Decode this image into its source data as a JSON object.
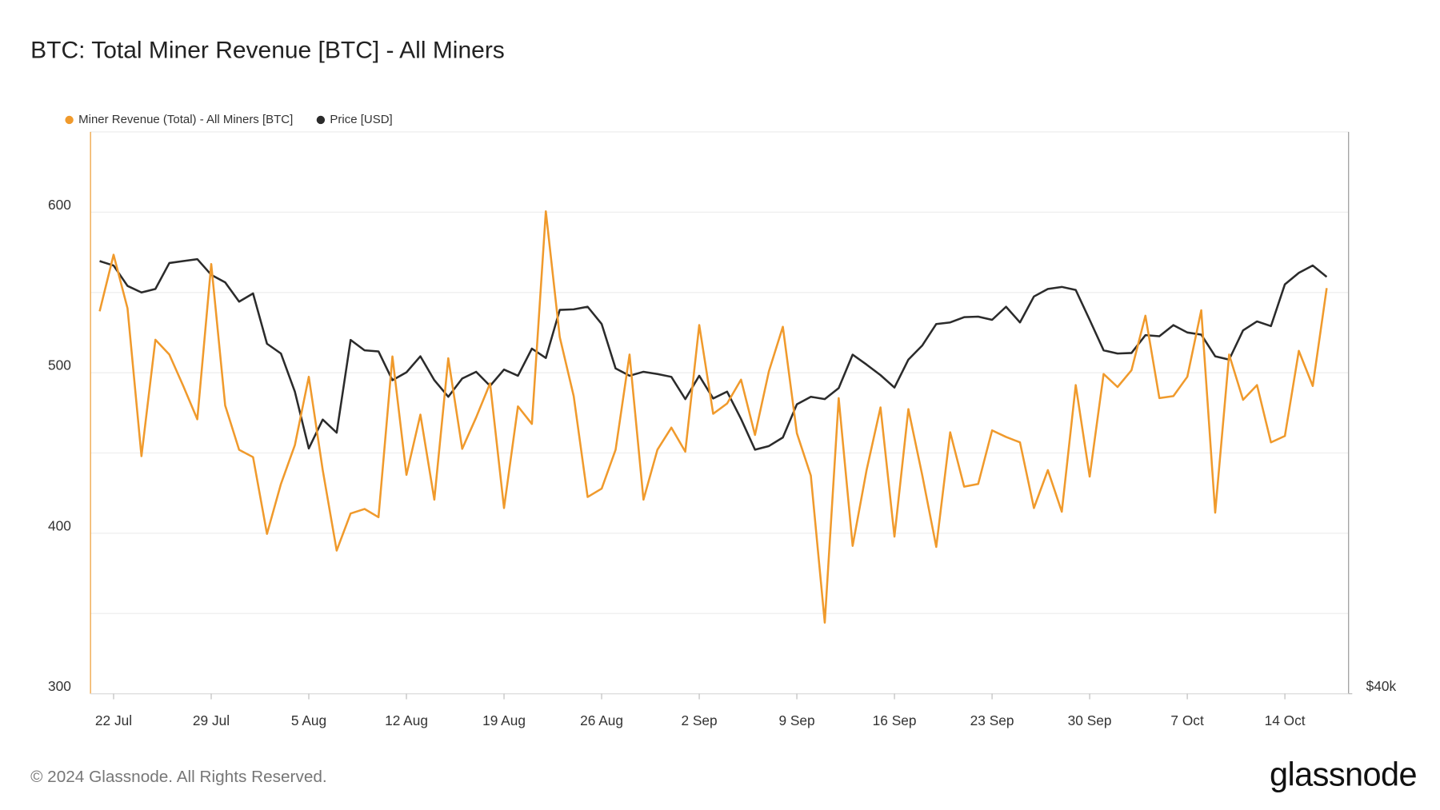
{
  "chart_data": {
    "type": "line",
    "title": "BTC: Total Miner Revenue [BTC] - All Miners",
    "categories": [
      null,
      "22 Jul",
      null,
      null,
      null,
      null,
      null,
      null,
      "29 Jul",
      null,
      null,
      null,
      null,
      null,
      null,
      "5 Aug",
      null,
      null,
      null,
      null,
      null,
      null,
      "12 Aug",
      null,
      null,
      null,
      null,
      null,
      null,
      "19 Aug",
      null,
      null,
      null,
      null,
      null,
      null,
      "26 Aug",
      null,
      null,
      null,
      null,
      null,
      null,
      "2 Sep",
      null,
      null,
      null,
      null,
      null,
      null,
      "9 Sep",
      null,
      null,
      null,
      null,
      null,
      null,
      "16 Sep",
      null,
      null,
      null,
      null,
      null,
      null,
      "23 Sep",
      null,
      null,
      null,
      null,
      null,
      null,
      "30 Sep",
      null,
      null,
      null,
      null,
      null,
      null,
      "7 Oct",
      null,
      null,
      null,
      null,
      null,
      null,
      "14 Oct",
      null,
      null,
      null
    ],
    "series": [
      {
        "name": "Miner Revenue (Total) - All Miners [BTC]",
        "color": "#f09a2c",
        "values": [
          538.3,
          573.5,
          540.1,
          448,
          520.5,
          511.3,
          491.7,
          471,
          567.7,
          479.6,
          452,
          447.4,
          399.6,
          430.7,
          454.9,
          497.5,
          439.3,
          389.2,
          412.3,
          415.1,
          410,
          510.1,
          436.4,
          473.9,
          420.9,
          509,
          452.6,
          472.1,
          493.4,
          415.7,
          479,
          468.1,
          600.5,
          522.2,
          485.4,
          422.6,
          427.8,
          452,
          511.3,
          420.9,
          452,
          465.8,
          450.8,
          529.7,
          474.4,
          480.8,
          495.7,
          461.2,
          500.9,
          528.6,
          462.3,
          435.9,
          344.3,
          484.2,
          392.1,
          439.3,
          478.4,
          397.9,
          477.3,
          435.9,
          391.5,
          462.9,
          429,
          430.7,
          464.1,
          460,
          456.6,
          415.7,
          439.3,
          413.4,
          492.3,
          435.3,
          499.2,
          491.1,
          501.5,
          535.5,
          484.2,
          485.4,
          497.5,
          538.9,
          412.8,
          511.3,
          483.1,
          492.3,
          456.6,
          460.6,
          513.6,
          491.7,
          552.7
        ]
      },
      {
        "name": "Price [USD]",
        "color": "#2b2b2b",
        "axis": "y2",
        "values": [
          67560,
          67200,
          65560,
          65040,
          65320,
          67400,
          67560,
          67720,
          66440,
          65840,
          64320,
          64960,
          61120,
          60400,
          57680,
          53840,
          55760,
          54880,
          61400,
          60640,
          60560,
          58480,
          59040,
          60200,
          58480,
          57320,
          58600,
          59080,
          58080,
          59240,
          58800,
          60760,
          60080,
          63680,
          63720,
          63920,
          62600,
          59320,
          58800,
          59080,
          58920,
          58720,
          57160,
          58800,
          57200,
          57680,
          55800,
          53760,
          54000,
          54560,
          56800,
          57320,
          57160,
          57920,
          60320,
          59600,
          58840,
          57960,
          59960,
          61000,
          62600,
          62720,
          63120,
          63160,
          62920,
          63920,
          62720,
          64720,
          65320,
          65480,
          65240,
          62920,
          60640,
          60400,
          60440,
          61760,
          61680,
          62520,
          61960,
          61800,
          60200,
          59960,
          62120,
          62800,
          62440,
          65680,
          66600,
          67200,
          66280
        ]
      }
    ],
    "ylim": [
      300,
      650
    ],
    "yticks": [
      300,
      400,
      500,
      600
    ],
    "ygrid_minor": [
      350,
      450,
      550,
      650
    ],
    "y2lim": [
      40000,
      79000
    ],
    "y2log": true,
    "y2ticks": [
      {
        "value": 40000,
        "label": "$40k"
      }
    ],
    "grid": true,
    "legend": "top-left"
  },
  "copyright": "© 2024 Glassnode. All Rights Reserved.",
  "brand": "glassnode"
}
